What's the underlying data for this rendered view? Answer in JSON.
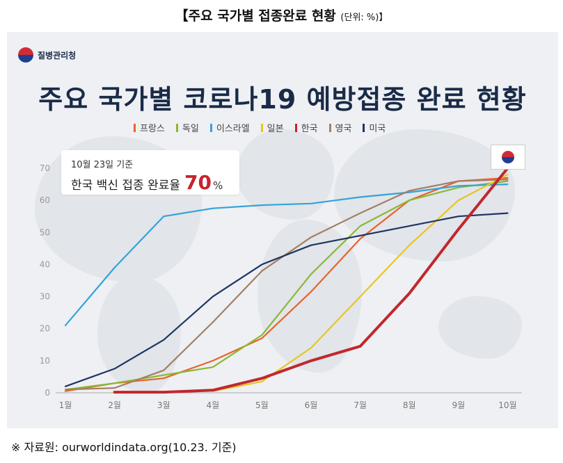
{
  "header": {
    "title": "【주요 국가별 접종완료 현황",
    "unit": "(단위: %)】"
  },
  "agency": "질병관리청",
  "source": "※ 자료원: ourworldindata.org(10.23. 기준)",
  "callout": {
    "date": "10월 23일 기준",
    "text": "한국 백신 접종 완료율",
    "value": "70",
    "unit": "%"
  },
  "flag_icon": "korea-flag-icon",
  "chart_data": {
    "type": "line",
    "title": "주요 국가별 코로나19 예방접종 완료 현황",
    "categories": [
      "1월",
      "2월",
      "3월",
      "4월",
      "5월",
      "6월",
      "7월",
      "8월",
      "9월",
      "10월"
    ],
    "yticks": [
      0,
      10,
      20,
      30,
      40,
      50,
      60,
      70
    ],
    "ylim": [
      0,
      70
    ],
    "series": [
      {
        "name": "프랑스",
        "color": "#e8632b",
        "values": [
          0.5,
          3,
          4.5,
          10,
          17,
          31.5,
          48,
          60,
          66,
          67
        ]
      },
      {
        "name": "독일",
        "color": "#8ab833",
        "values": [
          1,
          3,
          5.5,
          8,
          18,
          37,
          52,
          60,
          64,
          66
        ]
      },
      {
        "name": "이스라엘",
        "color": "#33a3d9",
        "values": [
          21,
          39,
          55,
          57.5,
          58.5,
          59,
          61,
          62.5,
          64.5,
          65
        ]
      },
      {
        "name": "일본",
        "color": "#e8c51e",
        "values": [
          null,
          null,
          null,
          0.5,
          3.5,
          14,
          30,
          46,
          60,
          68
        ]
      },
      {
        "name": "한국",
        "color": "#c1272d",
        "values": [
          null,
          0.2,
          0.2,
          0.8,
          4.5,
          10,
          14.5,
          31,
          51,
          70
        ]
      },
      {
        "name": "영국",
        "color": "#a47e62",
        "values": [
          1,
          1.5,
          7,
          22,
          38,
          48.5,
          56,
          63,
          66,
          66.5
        ]
      },
      {
        "name": "미국",
        "color": "#1d3560",
        "values": [
          2,
          7.5,
          16.5,
          30,
          40,
          46,
          49,
          52,
          55,
          56
        ]
      }
    ]
  }
}
